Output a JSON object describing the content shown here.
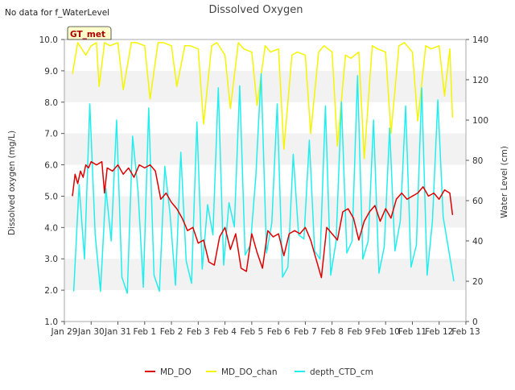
{
  "note": "No data for f_WaterLevel",
  "badge": "GT_met",
  "chart_data": {
    "type": "line",
    "title": "Dissolved Oxygen",
    "ylabel": "Dissolved oxygen (mg/L)",
    "y2label": "Water Level (cm)",
    "ylim": [
      1.0,
      10.0
    ],
    "y2lim": [
      0,
      140
    ],
    "xlim": [
      0,
      15
    ],
    "x_ticks": [
      "Jan 29",
      "Jan 30",
      "Jan 31",
      "Feb 1",
      "Feb 2",
      "Feb 3",
      "Feb 4",
      "Feb 5",
      "Feb 6",
      "Feb 7",
      "Feb 8",
      "Feb 9",
      "Feb 10",
      "Feb 11",
      "Feb 12",
      "Feb 13"
    ],
    "y_ticks": [
      "1.0",
      "2.0",
      "3.0",
      "4.0",
      "5.0",
      "6.0",
      "7.0",
      "8.0",
      "9.0",
      "10.0"
    ],
    "y2_ticks": [
      "0",
      "20",
      "40",
      "60",
      "80",
      "100",
      "120",
      "140"
    ],
    "grid": "horizontal bands",
    "legend_position": "bottom",
    "colors": {
      "MD_DO": "#dd0000",
      "MD_DO_chan": "#f5f500",
      "depth_CTD_cm": "#22eeee",
      "band": "#f2f2f2"
    },
    "series": [
      {
        "name": "MD_DO",
        "axis": "left",
        "x": [
          0.3,
          0.4,
          0.5,
          0.6,
          0.7,
          0.8,
          0.9,
          1.0,
          1.2,
          1.4,
          1.5,
          1.6,
          1.8,
          2.0,
          2.2,
          2.4,
          2.6,
          2.8,
          3.0,
          3.2,
          3.4,
          3.6,
          3.8,
          4.0,
          4.2,
          4.4,
          4.6,
          4.8,
          5.0,
          5.2,
          5.4,
          5.6,
          5.8,
          6.0,
          6.2,
          6.4,
          6.6,
          6.8,
          7.0,
          7.2,
          7.4,
          7.6,
          7.8,
          8.0,
          8.2,
          8.4,
          8.6,
          8.8,
          9.0,
          9.2,
          9.4,
          9.6,
          9.8,
          10.0,
          10.2,
          10.4,
          10.6,
          10.8,
          11.0,
          11.2,
          11.4,
          11.6,
          11.8,
          12.0,
          12.2,
          12.4,
          12.6,
          12.8,
          13.0,
          13.2,
          13.4,
          13.6,
          13.8,
          14.0,
          14.2,
          14.4,
          14.5
        ],
        "y": [
          5.0,
          5.7,
          5.4,
          5.8,
          5.6,
          6.0,
          5.9,
          6.1,
          6.0,
          6.1,
          5.1,
          5.9,
          5.8,
          6.0,
          5.7,
          5.9,
          5.6,
          6.0,
          5.9,
          6.0,
          5.8,
          4.9,
          5.1,
          4.8,
          4.6,
          4.3,
          3.9,
          4.0,
          3.5,
          3.6,
          2.9,
          2.8,
          3.7,
          4.0,
          3.3,
          3.8,
          2.7,
          2.6,
          3.8,
          3.2,
          2.7,
          3.9,
          3.7,
          3.8,
          3.1,
          3.8,
          3.9,
          3.8,
          4.0,
          3.6,
          3.0,
          2.4,
          4.0,
          3.8,
          3.6,
          4.5,
          4.6,
          4.3,
          3.6,
          4.2,
          4.5,
          4.7,
          4.2,
          4.6,
          4.3,
          4.9,
          5.1,
          4.9,
          5.0,
          5.1,
          5.3,
          5.0,
          5.1,
          4.9,
          5.2,
          5.1,
          4.4
        ]
      },
      {
        "name": "MD_DO_chan",
        "axis": "left",
        "x": [
          0.3,
          0.5,
          0.8,
          1.0,
          1.2,
          1.3,
          1.5,
          1.7,
          2.0,
          2.2,
          2.5,
          2.7,
          3.0,
          3.2,
          3.5,
          3.7,
          4.0,
          4.2,
          4.5,
          4.7,
          5.0,
          5.2,
          5.5,
          5.7,
          6.0,
          6.2,
          6.5,
          6.7,
          7.0,
          7.2,
          7.5,
          7.7,
          8.0,
          8.2,
          8.5,
          8.7,
          9.0,
          9.2,
          9.5,
          9.7,
          10.0,
          10.2,
          10.5,
          10.7,
          11.0,
          11.2,
          11.5,
          11.7,
          12.0,
          12.2,
          12.5,
          12.7,
          13.0,
          13.2,
          13.5,
          13.7,
          14.0,
          14.2,
          14.4,
          14.5
        ],
        "y": [
          8.9,
          9.9,
          9.5,
          9.8,
          9.9,
          8.5,
          9.9,
          9.8,
          9.9,
          8.4,
          9.9,
          9.9,
          9.8,
          8.1,
          9.9,
          9.9,
          9.8,
          8.5,
          9.8,
          9.8,
          9.7,
          7.3,
          9.8,
          9.9,
          9.5,
          7.8,
          9.9,
          9.7,
          9.6,
          7.9,
          9.8,
          9.6,
          9.7,
          6.5,
          9.5,
          9.6,
          9.5,
          7.0,
          9.6,
          9.8,
          9.6,
          6.6,
          9.5,
          9.4,
          9.6,
          6.2,
          9.8,
          9.7,
          9.6,
          7.0,
          9.8,
          9.9,
          9.6,
          7.4,
          9.8,
          9.7,
          9.8,
          8.2,
          9.7,
          7.5
        ]
      },
      {
        "name": "depth_CTD_cm",
        "axis": "right",
        "x": [
          0.35,
          0.55,
          0.75,
          0.95,
          1.15,
          1.35,
          1.55,
          1.75,
          1.95,
          2.15,
          2.35,
          2.55,
          2.75,
          2.95,
          3.15,
          3.35,
          3.55,
          3.75,
          3.95,
          4.15,
          4.35,
          4.55,
          4.75,
          4.95,
          5.15,
          5.35,
          5.55,
          5.75,
          5.95,
          6.15,
          6.35,
          6.55,
          6.75,
          6.95,
          7.15,
          7.35,
          7.55,
          7.75,
          7.95,
          8.15,
          8.35,
          8.55,
          8.75,
          8.95,
          9.15,
          9.35,
          9.55,
          9.75,
          9.95,
          10.15,
          10.35,
          10.55,
          10.75,
          10.95,
          11.15,
          11.35,
          11.55,
          11.75,
          11.95,
          12.15,
          12.35,
          12.55,
          12.75,
          12.95,
          13.15,
          13.35,
          13.55,
          13.75,
          13.95,
          14.15,
          14.35,
          14.55
        ],
        "y": [
          15,
          68,
          31,
          108,
          43,
          15,
          66,
          40,
          100,
          22,
          14,
          92,
          65,
          17,
          106,
          23,
          15,
          77,
          53,
          18,
          84,
          30,
          19,
          99,
          26,
          58,
          43,
          116,
          28,
          59,
          47,
          117,
          33,
          38,
          72,
          123,
          34,
          49,
          108,
          22,
          27,
          83,
          43,
          41,
          90,
          35,
          31,
          107,
          23,
          40,
          109,
          34,
          40,
          122,
          31,
          40,
          100,
          24,
          37,
          96,
          35,
          50,
          107,
          27,
          38,
          116,
          23,
          50,
          110,
          52,
          36,
          20
        ]
      }
    ]
  },
  "legend": [
    {
      "label": "MD_DO",
      "color": "#dd0000"
    },
    {
      "label": "MD_DO_chan",
      "color": "#f5f500"
    },
    {
      "label": "depth_CTD_cm",
      "color": "#22eeee"
    }
  ]
}
